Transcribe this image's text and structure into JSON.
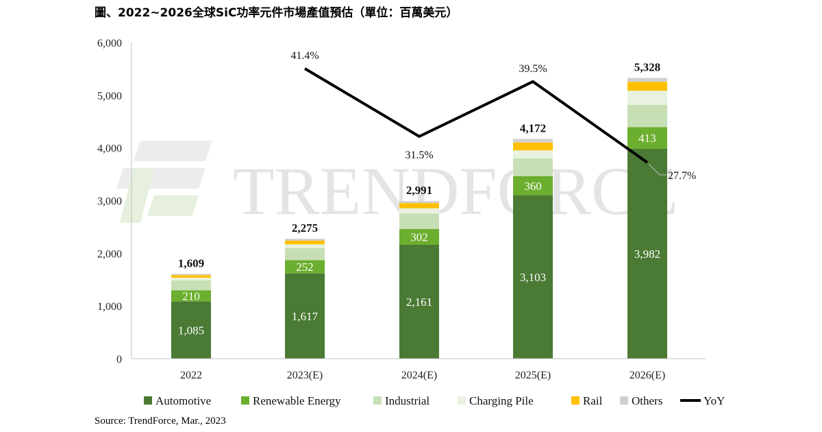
{
  "title": "圖、2022~2026全球SiC功率元件市場產值預估（單位：百萬美元）",
  "source": "Source: TrendForce, Mar., 2023",
  "watermark": "TRENDFORCE",
  "colors": {
    "Automotive": "#4a7a34",
    "Renewable Energy": "#6cae2e",
    "Industrial": "#c7dfb5",
    "Charging Pile": "#e8f2df",
    "Rail": "#ffc000",
    "Others": "#d0d0d0",
    "YoY": "#000000"
  },
  "chart_data": {
    "type": "bar",
    "stacked": true,
    "categories": [
      "2022",
      "2023(E)",
      "2024(E)",
      "2025(E)",
      "2026(E)"
    ],
    "ylim": [
      0,
      6000
    ],
    "yticks": [
      "0",
      "1,000",
      "2,000",
      "3,000",
      "4,000",
      "5,000",
      "6,000"
    ],
    "series": [
      {
        "name": "Automotive",
        "values": [
          1085,
          1617,
          2161,
          3103,
          3982
        ],
        "labels": [
          "1,085",
          "1,617",
          "2,161",
          "3,103",
          "3,982"
        ]
      },
      {
        "name": "Renewable Energy",
        "values": [
          210,
          252,
          302,
          360,
          413
        ],
        "labels": [
          "210",
          "252",
          "302",
          "360",
          "413"
        ]
      },
      {
        "name": "Industrial",
        "values": [
          190,
          230,
          290,
          340,
          420
        ],
        "labels": []
      },
      {
        "name": "Charging Pile",
        "values": [
          50,
          70,
          100,
          150,
          270
        ],
        "labels": []
      },
      {
        "name": "Rail",
        "values": [
          50,
          70,
          100,
          150,
          170
        ],
        "labels": []
      },
      {
        "name": "Others",
        "values": [
          24,
          36,
          38,
          69,
          73
        ],
        "labels": []
      }
    ],
    "totals": [
      1609,
      2275,
      2991,
      4172,
      5328
    ],
    "total_labels": [
      "1,609",
      "2,275",
      "2,991",
      "4,172",
      "5,328"
    ],
    "yoy": {
      "name": "YoY",
      "categories": [
        "2023(E)",
        "2024(E)",
        "2025(E)",
        "2026(E)"
      ],
      "values": [
        41.4,
        31.5,
        39.5,
        27.7
      ],
      "labels": [
        "41.4%",
        "31.5%",
        "39.5%",
        "27.7%"
      ]
    },
    "legend": {
      "position": "bottom",
      "entries": [
        "Automotive",
        "Renewable Energy",
        "Industrial",
        "Charging Pile",
        "Rail",
        "Others",
        "YoY"
      ]
    },
    "grid": false
  }
}
